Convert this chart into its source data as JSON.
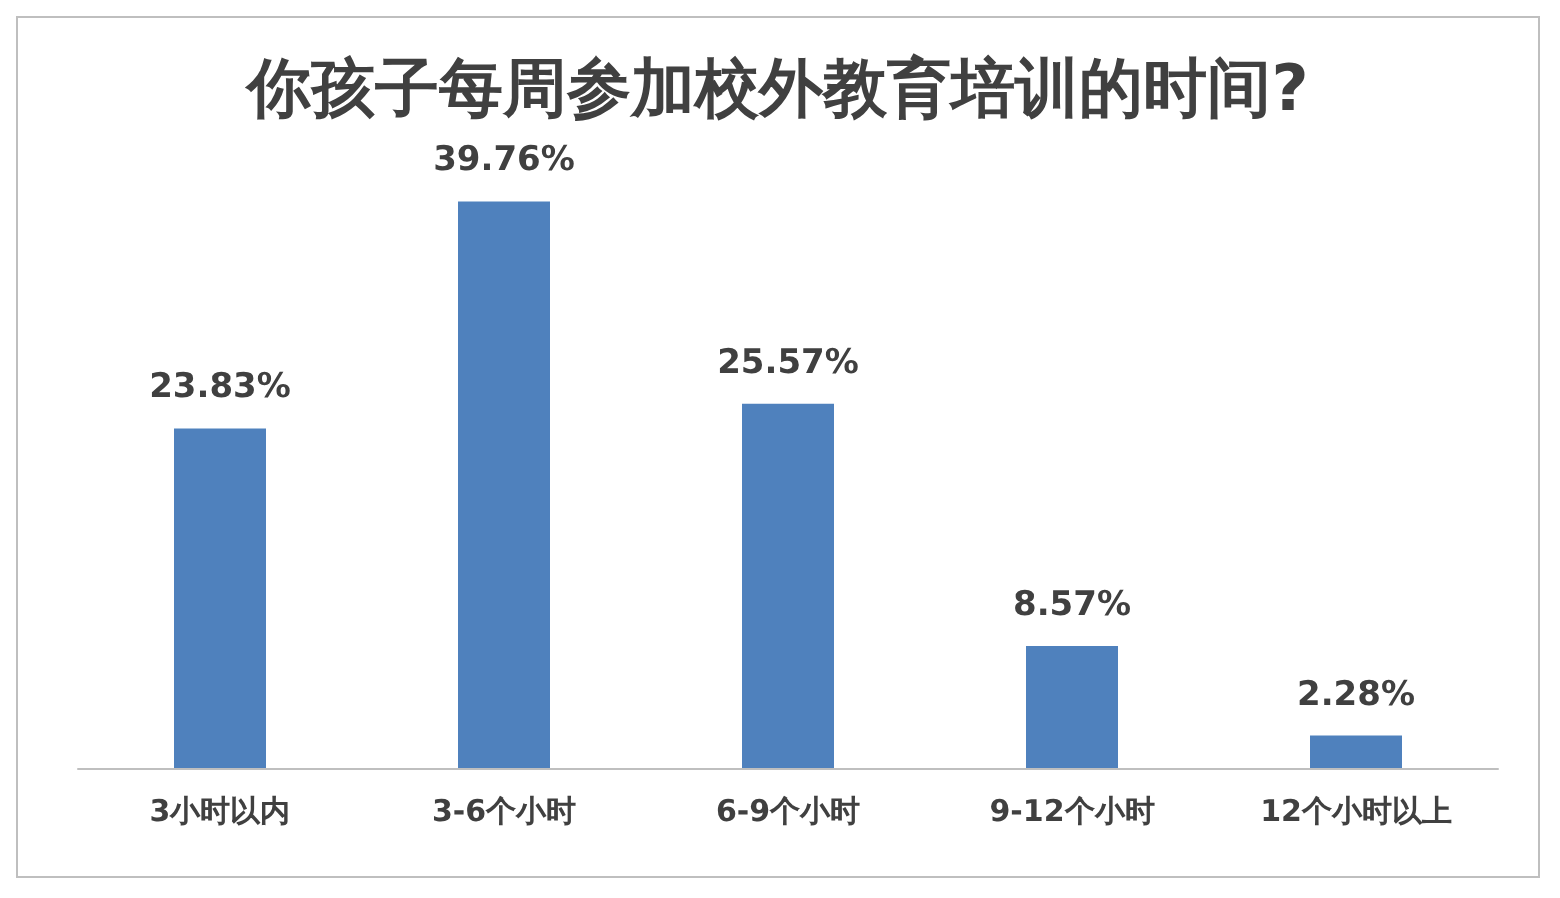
{
  "chart_data": {
    "type": "bar",
    "title": "你孩子每周参加校外教育培训的时间?",
    "categories": [
      "3小时以内",
      "3-6个小时",
      "6-9个小时",
      "9-12个小时",
      "12个小时以上"
    ],
    "values": [
      23.83,
      39.76,
      25.57,
      8.57,
      2.28
    ],
    "value_labels": [
      "23.83%",
      "39.76%",
      "25.57%",
      "8.57%",
      "2.28%"
    ],
    "color": "#4f81bd"
  }
}
